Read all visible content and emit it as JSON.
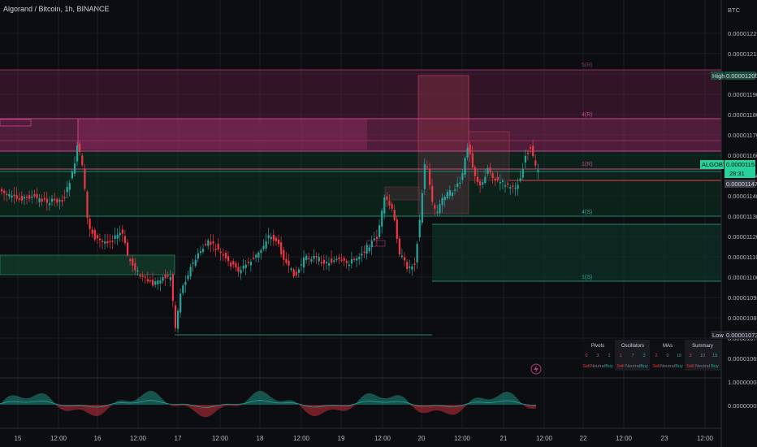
{
  "header": {
    "title": "Algorand / Bitcoin, 1h, BINANCE"
  },
  "price_axis": {
    "currency": "BTC",
    "ticks": [
      "0.00001220",
      "0.00001210",
      "0.00001200",
      "0.00001190",
      "0.00001180",
      "0.00001170",
      "0.00001160",
      "0.00001150",
      "0.00001140",
      "0.00001130",
      "0.00001120",
      "0.00001110",
      "0.00001100",
      "0.00001090",
      "0.00001080",
      "0.00001070",
      "0.00001060"
    ],
    "high_label": "High",
    "high_value": "0.00001200",
    "low_label": "Low",
    "low_value": "0.00001073",
    "symbol_tag": "ALGOBTC",
    "last_price": "0.00001153",
    "countdown": "28:31",
    "prev_price": "0.00001147",
    "osc_ticks": [
      "1.00000000",
      "0.00000000"
    ]
  },
  "time_axis": {
    "labels": [
      "15",
      "12:00",
      "16",
      "12:00",
      "17",
      "12:00",
      "18",
      "12:00",
      "19",
      "12:00",
      "20",
      "12:00",
      "21",
      "12:00",
      "22",
      "12:00",
      "23",
      "12:00"
    ]
  },
  "levels": [
    "5(R)",
    "4(R)",
    "1(R)",
    "4(S)",
    "1(S)"
  ],
  "table": {
    "headers": [
      "Pivots",
      "Oscillators",
      "MAs",
      "Summary"
    ],
    "counts": [
      "0",
      "3",
      "1",
      "1",
      "7",
      "3",
      "2",
      "0",
      "15",
      "3",
      "10",
      "19"
    ],
    "signals": [
      "Sell",
      "Neutral",
      "Buy",
      "Sell",
      "Neutral",
      "Buy",
      "Sell",
      "Neutral",
      "Buy",
      "Sell",
      "Neutral",
      "Buy"
    ]
  },
  "colors": {
    "bull": "#26a69a",
    "bear": "#f23645",
    "resist": "#b03a7a",
    "support": "#1f8a63",
    "high_tag": "#1e4e3e",
    "last_tag": "#26d39a"
  },
  "chart_data": {
    "type": "candlestick",
    "title": "Algorand / Bitcoin, 1h, BINANCE",
    "xlabel": "",
    "ylabel": "",
    "ylim": [
      1.055e-05,
      1.228e-05
    ],
    "x_range": [
      "15",
      "23 12:00"
    ],
    "high": 1.2e-05,
    "low": 1.073e-05,
    "last": 1.153e-05,
    "prev_close": 1.147e-05,
    "pivot_levels": [
      {
        "label": "5(R)",
        "value": 1.202e-05
      },
      {
        "label": "4(R)",
        "value": 1.177e-05
      },
      {
        "label": "1(R)",
        "value": 1.155e-05
      },
      {
        "label": "4(S)",
        "value": 1.13e-05
      },
      {
        "label": "1(S)",
        "value": 1.1e-05
      }
    ],
    "grid": true,
    "legend": "none"
  }
}
